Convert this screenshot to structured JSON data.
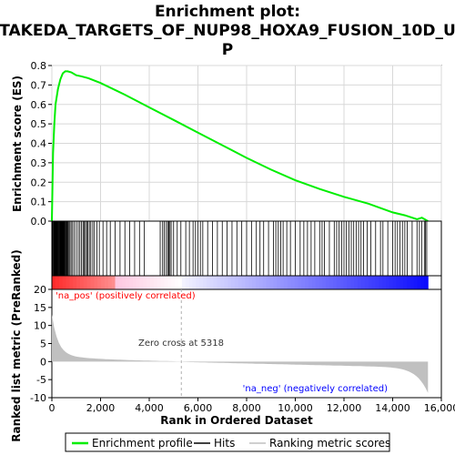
{
  "chart_data": {
    "type": "line",
    "title_line1": "Enrichment plot:",
    "title_line2": "TAKEDA_TARGETS_OF_NUP98_HOXA9_FUSION_10D_U",
    "title_line3": "P",
    "xlabel": "Rank in Ordered Dataset",
    "ylabel_top": "Enrichment score (ES)",
    "ylabel_bottom": "Ranked list metric (PreRanked)",
    "x_ticks": [
      0,
      2000,
      4000,
      6000,
      8000,
      10000,
      12000,
      14000,
      16000
    ],
    "x_tick_labels": [
      "0",
      "2,000",
      "4,000",
      "6,000",
      "8,000",
      "10,000",
      "12,000",
      "14,000",
      "16,000"
    ],
    "xlim": [
      0,
      16000
    ],
    "es_ylim": [
      0,
      0.8
    ],
    "es_ticks": [
      0.0,
      0.1,
      0.2,
      0.3,
      0.4,
      0.5,
      0.6,
      0.7,
      0.8
    ],
    "es_tick_labels": [
      "0.0",
      "0.1",
      "0.2",
      "0.3",
      "0.4",
      "0.5",
      "0.6",
      "0.7",
      "0.8"
    ],
    "metric_ylim": [
      -10,
      20
    ],
    "metric_ticks": [
      -10,
      -5,
      0,
      5,
      10,
      15,
      20
    ],
    "metric_tick_labels": [
      "-10",
      "-5",
      "0",
      "5",
      "10",
      "15",
      "20"
    ],
    "max_rank": 15450,
    "zero_cross": 5318,
    "zero_cross_label": "Zero cross at 5318",
    "pos_label": "'na_pos' (positively correlated)",
    "neg_label": "'na_neg' (negatively correlated)",
    "es_curve": {
      "x": [
        0,
        50,
        100,
        150,
        250,
        350,
        450,
        550,
        650,
        800,
        1000,
        1200,
        1500,
        2000,
        3000,
        4000,
        5000,
        6000,
        7000,
        8000,
        9000,
        10000,
        11000,
        12000,
        13000,
        14000,
        14500,
        15000,
        15200,
        15450
      ],
      "y": [
        0.0,
        0.35,
        0.5,
        0.6,
        0.68,
        0.73,
        0.76,
        0.77,
        0.77,
        0.765,
        0.75,
        0.745,
        0.735,
        0.71,
        0.65,
        0.585,
        0.52,
        0.455,
        0.39,
        0.325,
        0.265,
        0.21,
        0.165,
        0.125,
        0.09,
        0.045,
        0.03,
        0.01,
        0.018,
        0.0
      ]
    },
    "hits": [
      10,
      30,
      55,
      80,
      100,
      120,
      140,
      160,
      180,
      200,
      220,
      240,
      260,
      280,
      300,
      320,
      340,
      360,
      380,
      400,
      420,
      440,
      460,
      480,
      500,
      520,
      545,
      570,
      600,
      630,
      660,
      700,
      740,
      790,
      850,
      920,
      1000,
      1080,
      1150,
      1220,
      1280,
      1330,
      1380,
      1430,
      1480,
      1540,
      1600,
      1680,
      1750,
      1850,
      1950,
      2100,
      2250,
      2400,
      2600,
      2800,
      3000,
      3200,
      3400,
      3600,
      3800,
      4450,
      4550,
      4620,
      4700,
      4760,
      4800,
      4850,
      4900,
      5000,
      5150,
      5300,
      5500,
      5650,
      5800,
      5900,
      6000,
      6100,
      6200,
      6400,
      6600,
      6800,
      7000,
      7200,
      7400,
      7600,
      7800,
      8000,
      8200,
      8400,
      8550,
      8700,
      8900,
      9100,
      9200,
      9300,
      9400,
      9500,
      9650,
      9800,
      10000,
      10200,
      10350,
      10500,
      10650,
      10800,
      11000,
      11100,
      11200,
      11400,
      11600,
      11700,
      11800,
      11900,
      12000,
      12100,
      12200,
      12300,
      12400,
      12500,
      12600,
      12700,
      12800,
      12950,
      13100,
      13300,
      13500,
      13600,
      13800,
      14000,
      14100,
      14200,
      14300,
      14400,
      14500,
      14600,
      14800,
      15000,
      15100,
      15200,
      15300,
      15350,
      15400
    ],
    "colors": {
      "es_line": "#00ee00",
      "hit": "#000000",
      "metric_fill": "#c0c0c0",
      "pos_text": "#ff0000",
      "neg_text": "#0000ff",
      "zero_line": "#b0b0b0",
      "bar_pos_strong": "#ff0000",
      "bar_neg_strong": "#0000ff"
    },
    "legend": {
      "position": "bottom",
      "entries": [
        {
          "label": "Enrichment profile",
          "color": "#00ee00"
        },
        {
          "label": "Hits",
          "color": "#000000"
        },
        {
          "label": "Ranking metric scores",
          "color": "#c0c0c0"
        }
      ]
    }
  }
}
